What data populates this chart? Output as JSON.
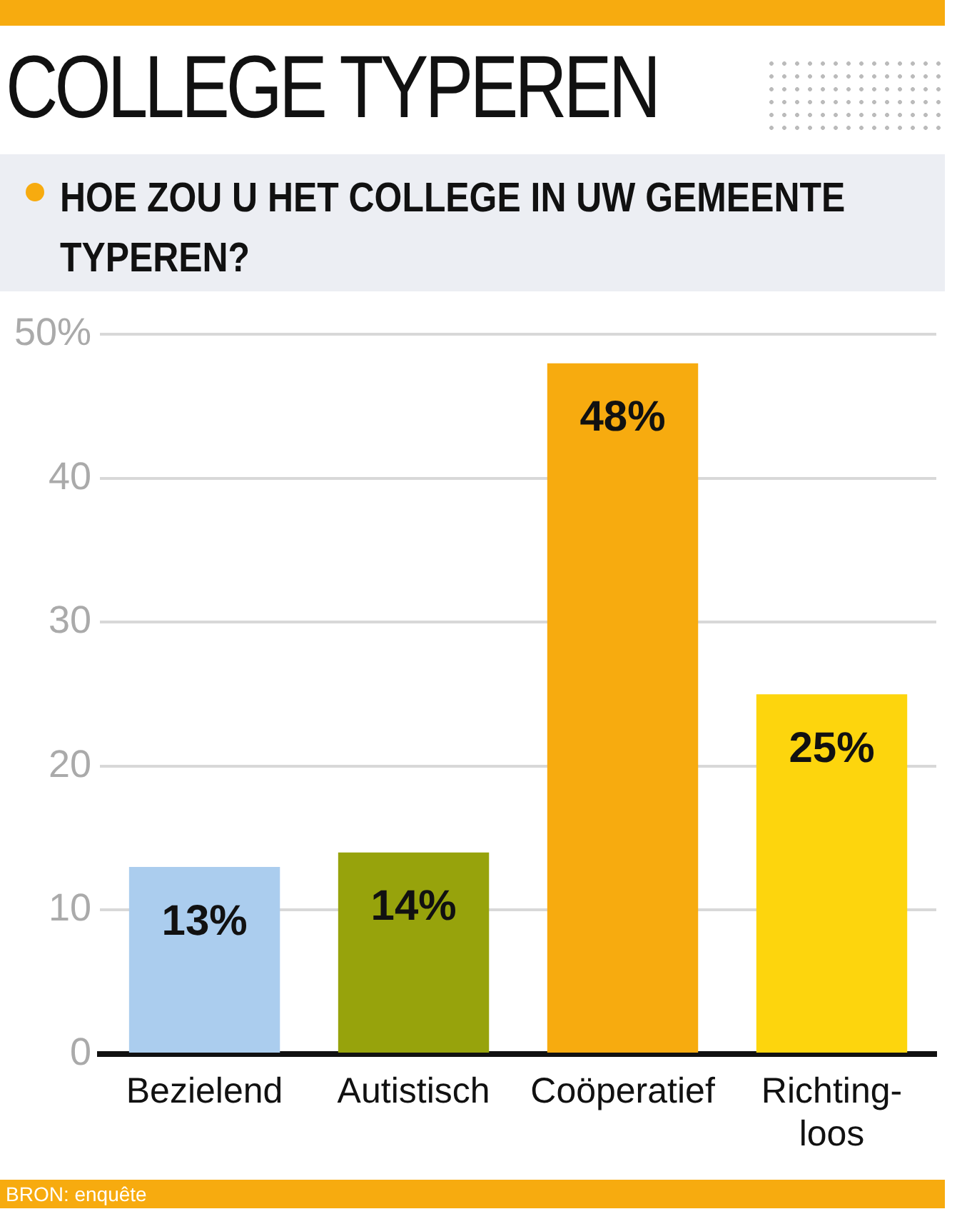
{
  "chart_data": {
    "type": "bar",
    "title": "COLLEGE TYPEREN",
    "subtitle": "HOE ZOU U HET COLLEGE IN UW GEMEENTE TYPEREN?",
    "categories": [
      "Bezielend",
      "Autistisch",
      "Coöperatief",
      "Richting-loos"
    ],
    "values": [
      13,
      14,
      48,
      25
    ],
    "colors": [
      "#abcdee",
      "#97a30c",
      "#f7ab0f",
      "#fdd50d"
    ],
    "value_labels": [
      "13%",
      "14%",
      "48%",
      "25%"
    ],
    "ylim": [
      0,
      50
    ],
    "yticks": [
      0,
      10,
      20,
      30,
      40,
      {
        "value": 50,
        "label": "50%"
      }
    ],
    "grid": "y",
    "annotations": [
      "BRON: enquête"
    ]
  }
}
